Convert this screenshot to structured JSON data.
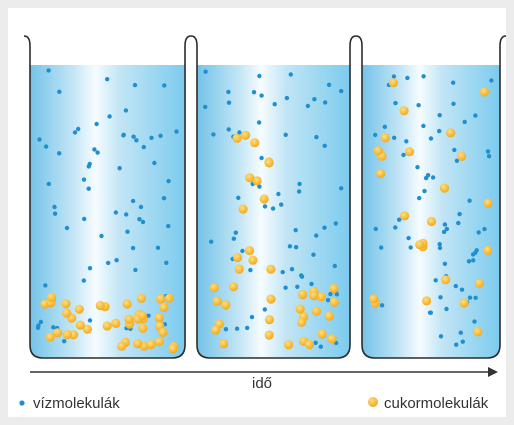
{
  "axis_label": "idő",
  "legend": [
    {
      "label": "vízmolekulák"
    },
    {
      "label": "cukormolekulák"
    }
  ]
}
